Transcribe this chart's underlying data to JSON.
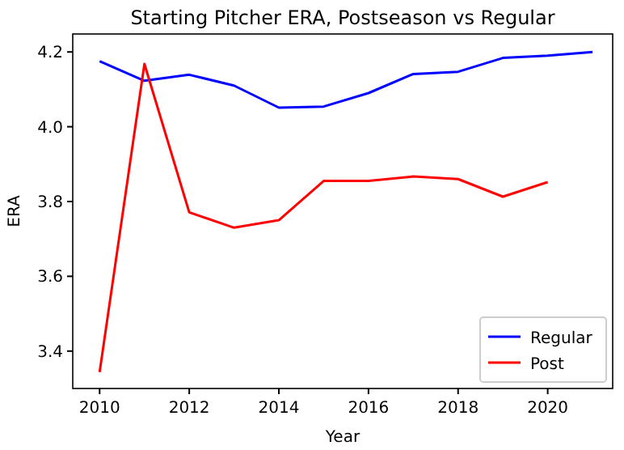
{
  "chart_data": {
    "type": "line",
    "title": "Starting Pitcher ERA, Postseason vs Regular",
    "xlabel": "Year",
    "ylabel": "ERA",
    "xlim": [
      2009.4,
      2021.45
    ],
    "xticks": [
      2010,
      2012,
      2014,
      2016,
      2018,
      2020
    ],
    "ylim": [
      3.3,
      4.248
    ],
    "yticks": [
      3.4,
      3.6,
      3.8,
      {
        "value": 4,
        "label": "4.0"
      },
      4.2
    ],
    "legend": "bottom right",
    "grid": false,
    "series": [
      {
        "name": "Regular",
        "color": "#0000ff",
        "x": [
          2010,
          2011,
          2012,
          2013,
          2014,
          2015,
          2016,
          2017,
          2018,
          2019,
          2020,
          2021
        ],
        "values": [
          4.175,
          4.123,
          4.139,
          4.11,
          4.051,
          4.054,
          4.09,
          4.141,
          4.147,
          4.184,
          4.19,
          4.2
        ]
      },
      {
        "name": "Post",
        "color": "#ff0000",
        "x": [
          2010,
          2011,
          2012,
          2013,
          2014,
          2015,
          2016,
          2017,
          2018,
          2019,
          2020
        ],
        "values": [
          3.344,
          4.168,
          3.771,
          3.73,
          3.75,
          3.855,
          3.855,
          3.867,
          3.86,
          3.813,
          3.852
        ]
      }
    ]
  }
}
